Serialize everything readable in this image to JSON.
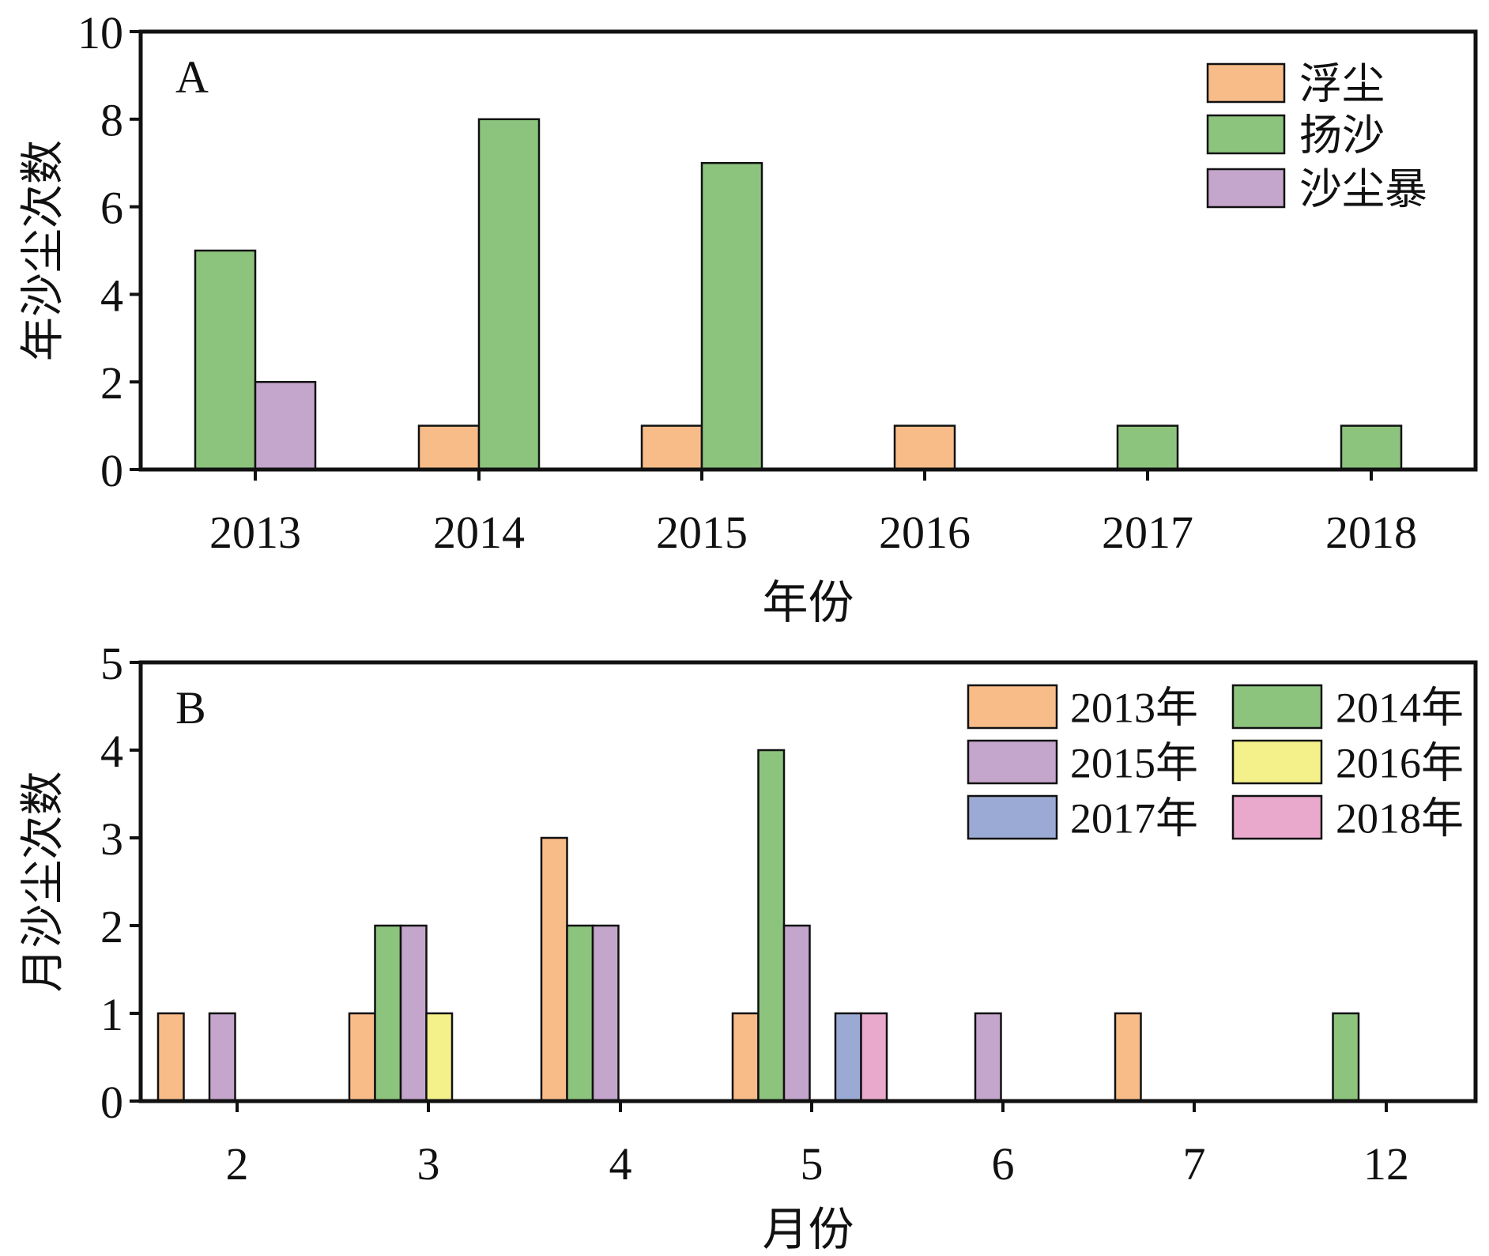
{
  "chart_data": [
    {
      "type": "bar",
      "panel_label": "A",
      "xlabel": "年份",
      "ylabel": "年沙尘次数",
      "ylim": [
        0,
        10
      ],
      "yticks": [
        "0",
        "2",
        "4",
        "6",
        "8",
        "10"
      ],
      "categories": [
        "2013",
        "2014",
        "2015",
        "2016",
        "2017",
        "2018"
      ],
      "series": [
        {
          "name": "浮尘",
          "color": "#F8BC89",
          "values": [
            0,
            1,
            1,
            1,
            0,
            0
          ]
        },
        {
          "name": "扬沙",
          "color": "#8CC47D",
          "values": [
            5,
            8,
            7,
            0,
            1,
            1
          ]
        },
        {
          "name": "沙尘暴",
          "color": "#C4A5CB",
          "values": [
            2,
            0,
            0,
            0,
            0,
            0
          ]
        }
      ],
      "legend_position": "top-right",
      "grid": false
    },
    {
      "type": "bar",
      "panel_label": "B",
      "xlabel": "月份",
      "ylabel": "月沙尘次数",
      "ylim": [
        0,
        5
      ],
      "yticks": [
        "0",
        "1",
        "2",
        "3",
        "4",
        "5"
      ],
      "categories": [
        "2",
        "3",
        "4",
        "5",
        "6",
        "7",
        "12"
      ],
      "series": [
        {
          "name": "2013年",
          "color": "#F8BC89",
          "values": [
            1,
            1,
            3,
            1,
            0,
            1,
            0
          ]
        },
        {
          "name": "2014年",
          "color": "#8CC47D",
          "values": [
            0,
            2,
            2,
            4,
            0,
            0,
            1
          ]
        },
        {
          "name": "2015年",
          "color": "#C4A5CB",
          "values": [
            1,
            2,
            2,
            2,
            1,
            0,
            0
          ]
        },
        {
          "name": "2016年",
          "color": "#F4F08A",
          "values": [
            0,
            1,
            0,
            0,
            0,
            0,
            0
          ]
        },
        {
          "name": "2017年",
          "color": "#9BAAD4",
          "values": [
            0,
            0,
            0,
            1,
            0,
            0,
            0
          ]
        },
        {
          "name": "2018年",
          "color": "#E8A9CC",
          "values": [
            0,
            0,
            0,
            1,
            0,
            0,
            0
          ]
        }
      ],
      "legend_position": "top-right",
      "grid": false
    }
  ]
}
